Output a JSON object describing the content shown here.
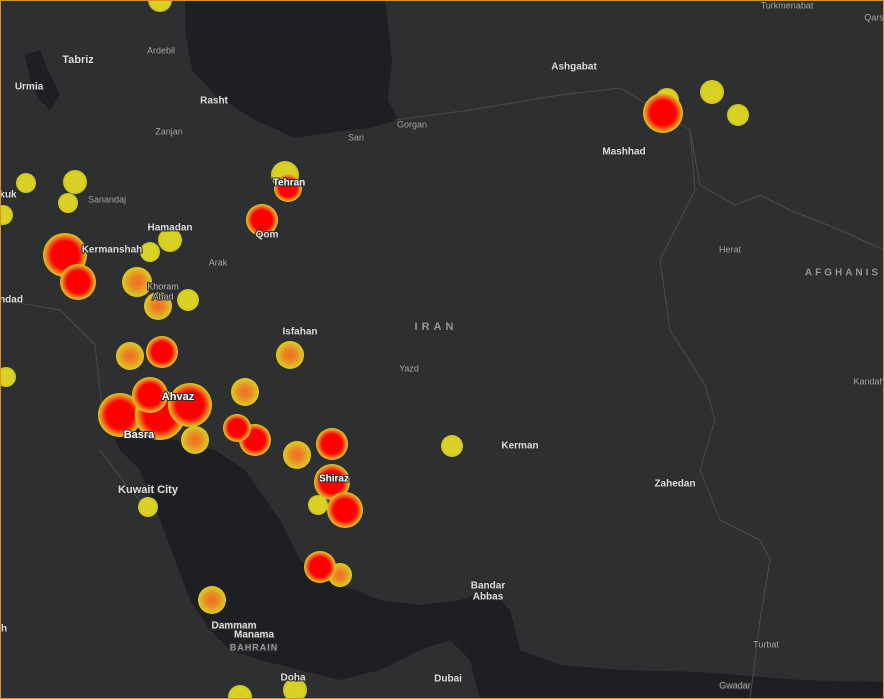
{
  "map": {
    "labels": [
      "Turkmenabat",
      "Qars",
      "Tabriz",
      "Ardebil",
      "Urmia",
      "Rasht",
      "Zanjan",
      "Sari",
      "Gorgan",
      "Ashgabat",
      "Mashhad",
      "Tehran",
      "kuk",
      "Sanandaj",
      "Hamadan",
      "Qom",
      "Kermanshah",
      "Arak",
      "Herat",
      "AFGHANIS",
      "Khoram",
      "Abad",
      "ndad",
      "Isfahan",
      "IRAN",
      "Yazd",
      "Kandah",
      "Ahvaz",
      "Basra",
      "Kerman",
      "Shiraz",
      "Zahedan",
      "Kuwait City",
      "Bandar",
      "Abbas",
      "Dammam",
      "Manama",
      "BAHRAIN",
      "h",
      "Turbat",
      "Doha",
      "Dubai",
      "Gwadar"
    ]
  }
}
